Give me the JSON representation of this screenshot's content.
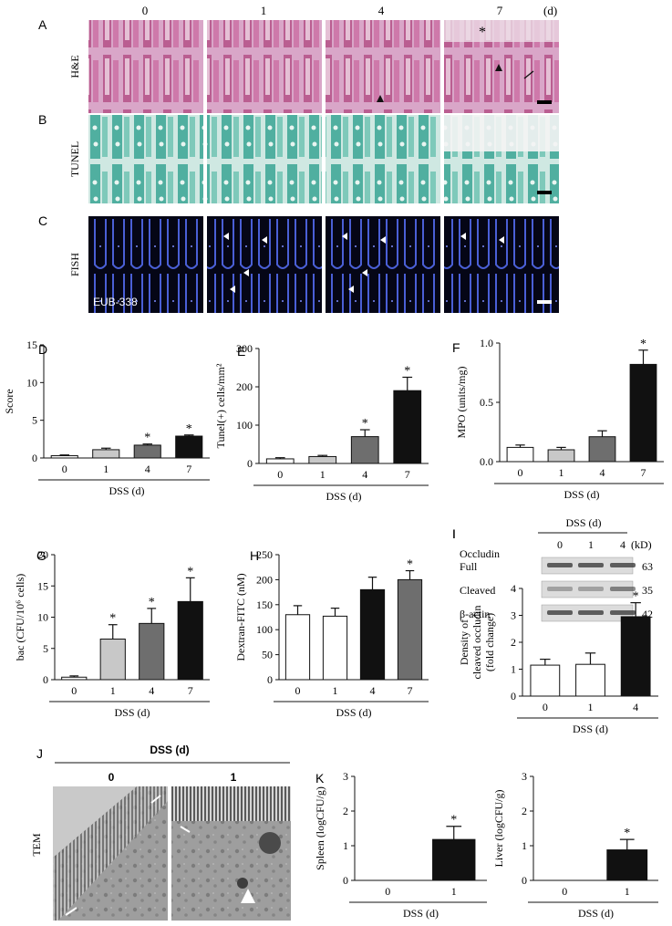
{
  "day_headers": [
    "0",
    "1",
    "4",
    "7"
  ],
  "day_unit": "(d)",
  "rows": [
    {
      "panel": "A",
      "label": "H&E",
      "style": "he",
      "overlay": ""
    },
    {
      "panel": "B",
      "label": "TUNEL",
      "style": "tunel",
      "overlay": ""
    },
    {
      "panel": "C",
      "label": "FISH",
      "style": "fish",
      "overlay": "EUB-338"
    }
  ],
  "he_marks": [
    "*"
  ],
  "chart_data": [
    {
      "panel": "D",
      "type": "bar",
      "ylabel": "Score",
      "ylim": [
        0,
        15
      ],
      "yticks": [
        0,
        5,
        10,
        15
      ],
      "categories": [
        "0",
        "1",
        "4",
        "7"
      ],
      "values": [
        0.3,
        1.1,
        1.7,
        2.9
      ],
      "errors": [
        0.1,
        0.2,
        0.15,
        0.15
      ],
      "fills": [
        "#ffffff",
        "#c8c8c8",
        "#6e6e6e",
        "#111111"
      ],
      "sig": [
        false,
        false,
        true,
        true
      ],
      "xlabel": "DSS (d)"
    },
    {
      "panel": "E",
      "type": "bar",
      "ylabel": "Tunel(+) cells/mm²",
      "ylim": [
        0,
        300
      ],
      "yticks": [
        0,
        100,
        200,
        300
      ],
      "categories": [
        "0",
        "1",
        "4",
        "7"
      ],
      "values": [
        12,
        18,
        70,
        190
      ],
      "errors": [
        3,
        3,
        18,
        35
      ],
      "fills": [
        "#ffffff",
        "#c8c8c8",
        "#6e6e6e",
        "#111111"
      ],
      "sig": [
        false,
        false,
        true,
        true
      ],
      "xlabel": "DSS (d)"
    },
    {
      "panel": "F",
      "type": "bar",
      "ylabel": "MPO (units/mg)",
      "ylim": [
        0,
        1.0
      ],
      "yticks": [
        "0.0",
        "0.5",
        "1.0"
      ],
      "categories": [
        "0",
        "1",
        "4",
        "7"
      ],
      "values": [
        0.12,
        0.1,
        0.21,
        0.82
      ],
      "errors": [
        0.02,
        0.02,
        0.05,
        0.12
      ],
      "fills": [
        "#ffffff",
        "#c8c8c8",
        "#6e6e6e",
        "#111111"
      ],
      "sig": [
        false,
        false,
        false,
        true
      ],
      "xlabel": "DSS (d)"
    },
    {
      "panel": "G",
      "type": "bar",
      "ylabel": "bac (CFU/10⁶ cells)",
      "ylim": [
        0,
        20
      ],
      "yticks": [
        0,
        5,
        10,
        15,
        20
      ],
      "categories": [
        "0",
        "1",
        "4",
        "7"
      ],
      "values": [
        0.4,
        6.5,
        9.0,
        12.5
      ],
      "errors": [
        0.2,
        2.3,
        2.4,
        3.8
      ],
      "fills": [
        "#ffffff",
        "#c8c8c8",
        "#6e6e6e",
        "#111111"
      ],
      "sig": [
        false,
        true,
        true,
        true
      ],
      "xlabel": "DSS (d)"
    },
    {
      "panel": "H",
      "type": "bar",
      "ylabel": "Dextran-FITC (nM)",
      "ylim": [
        0,
        250
      ],
      "yticks": [
        0,
        50,
        100,
        150,
        200,
        250
      ],
      "categories": [
        "0",
        "1",
        "4",
        "7"
      ],
      "values": [
        130,
        127,
        180,
        200
      ],
      "errors": [
        18,
        16,
        25,
        18
      ],
      "fills": [
        "#ffffff",
        "#ffffff",
        "#111111",
        "#6e6e6e"
      ],
      "sig": [
        false,
        false,
        false,
        true
      ],
      "xlabel": "DSS (d)"
    },
    {
      "panel": "I",
      "type": "bar",
      "ylabel": "Density of cleaved occludin (fold change)",
      "ylim": [
        0,
        4
      ],
      "yticks": [
        0,
        1,
        2,
        3,
        4
      ],
      "categories": [
        "0",
        "1",
        "4"
      ],
      "values": [
        1.15,
        1.18,
        2.95
      ],
      "errors": [
        0.22,
        0.42,
        0.52
      ],
      "fills": [
        "#ffffff",
        "#ffffff",
        "#111111"
      ],
      "sig": [
        false,
        false,
        true
      ],
      "xlabel": "DSS (d)"
    },
    {
      "panel": "K",
      "type": "bar",
      "ylabel": "Spleen (logCFU/g)",
      "ylim": [
        0,
        3
      ],
      "yticks": [
        0,
        1,
        2,
        3
      ],
      "categories": [
        "0",
        "1"
      ],
      "values": [
        0,
        1.18
      ],
      "errors": [
        0,
        0.38
      ],
      "fills": [
        "#ffffff",
        "#111111"
      ],
      "sig": [
        false,
        true
      ],
      "xlabel": "DSS (d)"
    },
    {
      "panel": "",
      "type": "bar",
      "ylabel": "Liver (logCFU/g)",
      "ylim": [
        0,
        3
      ],
      "yticks": [
        0,
        1,
        2,
        3
      ],
      "categories": [
        "0",
        "1"
      ],
      "values": [
        0,
        0.88
      ],
      "errors": [
        0,
        0.3
      ],
      "fills": [
        "#ffffff",
        "#111111"
      ],
      "sig": [
        false,
        true
      ],
      "xlabel": "DSS (d)"
    }
  ],
  "blot": {
    "header": "DSS (d)",
    "lanes": [
      "0",
      "1",
      "4"
    ],
    "unit": "(kD)",
    "rows": [
      {
        "name": "Occludin",
        "sub": "Full",
        "kd": "63"
      },
      {
        "name": "",
        "sub": "Cleaved",
        "kd": "35"
      },
      {
        "name": "",
        "sub": "β-actin",
        "kd": "42"
      }
    ]
  },
  "tem": {
    "panel": "J",
    "header": "DSS (d)",
    "lanes": [
      "0",
      "1"
    ],
    "label": "TEM"
  },
  "sig_mark": "*"
}
